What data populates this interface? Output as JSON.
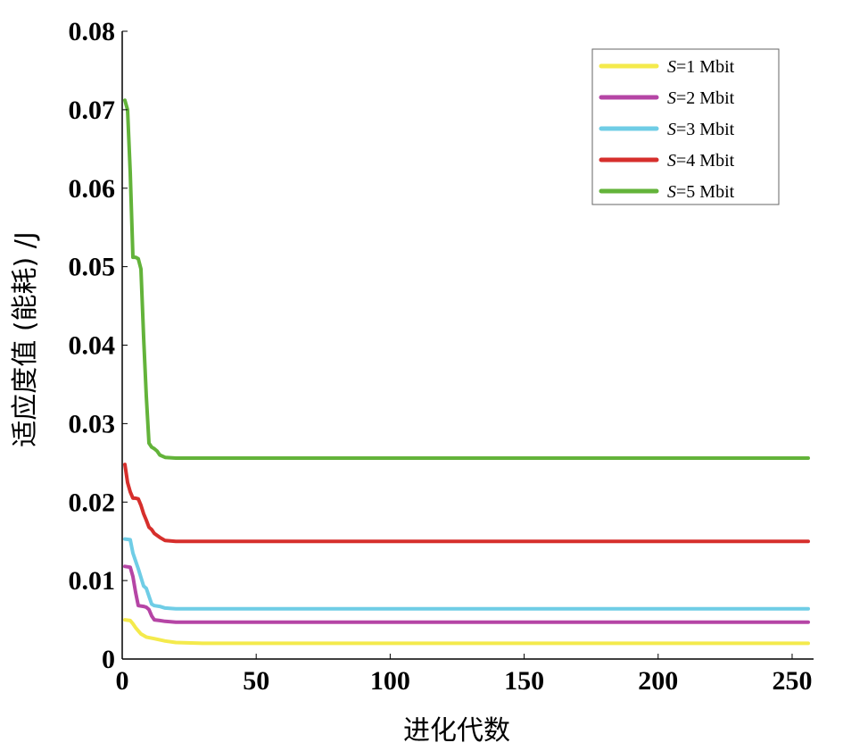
{
  "chart_data": {
    "type": "line",
    "xlabel": "进化代数",
    "ylabel": "适应度值 (能耗) /J",
    "xlim": [
      0,
      258
    ],
    "ylim": [
      0,
      0.08
    ],
    "x_ticks": [
      0,
      50,
      100,
      150,
      200,
      250
    ],
    "x_tick_labels": [
      "0",
      "50",
      "100",
      "150",
      "200",
      "250"
    ],
    "y_ticks": [
      0,
      0.01,
      0.02,
      0.03,
      0.04,
      0.05,
      0.06,
      0.07,
      0.08
    ],
    "y_tick_labels": [
      "0",
      "0.01",
      "0.02",
      "0.03",
      "0.04",
      "0.05",
      "0.06",
      "0.07",
      "0.08"
    ],
    "grid": false,
    "legend_position": "top-right",
    "series": [
      {
        "name": "S=1 Mbit",
        "label_italic": "S",
        "label_rest": "=1 Mbit",
        "color": "#f4ea4c",
        "x": [
          1,
          3,
          4,
          5,
          7,
          9,
          12,
          16,
          20,
          30,
          60,
          100,
          150,
          200,
          256
        ],
        "y": [
          0.005,
          0.0049,
          0.0045,
          0.004,
          0.0032,
          0.0028,
          0.0026,
          0.0023,
          0.0021,
          0.002,
          0.002,
          0.002,
          0.002,
          0.002,
          0.002
        ]
      },
      {
        "name": "S=2 Mbit",
        "label_italic": "S",
        "label_rest": "=2 Mbit",
        "color": "#b545a5",
        "x": [
          1,
          3,
          4,
          5,
          6,
          8,
          9,
          10,
          11,
          12,
          14,
          16,
          20,
          30,
          60,
          100,
          150,
          200,
          256
        ],
        "y": [
          0.0118,
          0.0117,
          0.0105,
          0.0085,
          0.0068,
          0.0067,
          0.0066,
          0.0063,
          0.0055,
          0.005,
          0.0049,
          0.0048,
          0.0047,
          0.0047,
          0.0047,
          0.0047,
          0.0047,
          0.0047,
          0.0047
        ]
      },
      {
        "name": "S=3 Mbit",
        "label_italic": "S",
        "label_rest": "=3 Mbit",
        "color": "#6fcde6",
        "x": [
          1,
          3,
          4,
          5,
          6,
          7,
          8,
          9,
          10,
          11,
          12,
          14,
          16,
          20,
          30,
          60,
          100,
          150,
          200,
          256
        ],
        "y": [
          0.0153,
          0.0152,
          0.0135,
          0.0125,
          0.0115,
          0.0104,
          0.0093,
          0.009,
          0.008,
          0.007,
          0.0068,
          0.0067,
          0.0065,
          0.0064,
          0.0064,
          0.0064,
          0.0064,
          0.0064,
          0.0064,
          0.0064
        ]
      },
      {
        "name": "S=4 Mbit",
        "label_italic": "S",
        "label_rest": "=4 Mbit",
        "color": "#d62f2c",
        "x": [
          1,
          2,
          3,
          4,
          5,
          6,
          7,
          8,
          9,
          10,
          11,
          12,
          14,
          16,
          20,
          30,
          60,
          100,
          150,
          200,
          256
        ],
        "y": [
          0.0248,
          0.0225,
          0.0213,
          0.0205,
          0.0205,
          0.0204,
          0.0196,
          0.0185,
          0.0177,
          0.0168,
          0.0165,
          0.016,
          0.0155,
          0.0151,
          0.015,
          0.015,
          0.015,
          0.015,
          0.015,
          0.015,
          0.015
        ]
      },
      {
        "name": "S=5 Mbit",
        "label_italic": "S",
        "label_rest": "=5 Mbit",
        "color": "#63b33a",
        "x": [
          1,
          2,
          3,
          4,
          5,
          6,
          7,
          8,
          9,
          10,
          11,
          12,
          13,
          14,
          16,
          20,
          30,
          60,
          100,
          150,
          200,
          256
        ],
        "y": [
          0.0712,
          0.07,
          0.062,
          0.0512,
          0.0512,
          0.051,
          0.0497,
          0.041,
          0.0335,
          0.0275,
          0.027,
          0.0268,
          0.0265,
          0.026,
          0.0257,
          0.0256,
          0.0256,
          0.0256,
          0.0256,
          0.0256,
          0.0256,
          0.0256
        ]
      }
    ]
  }
}
